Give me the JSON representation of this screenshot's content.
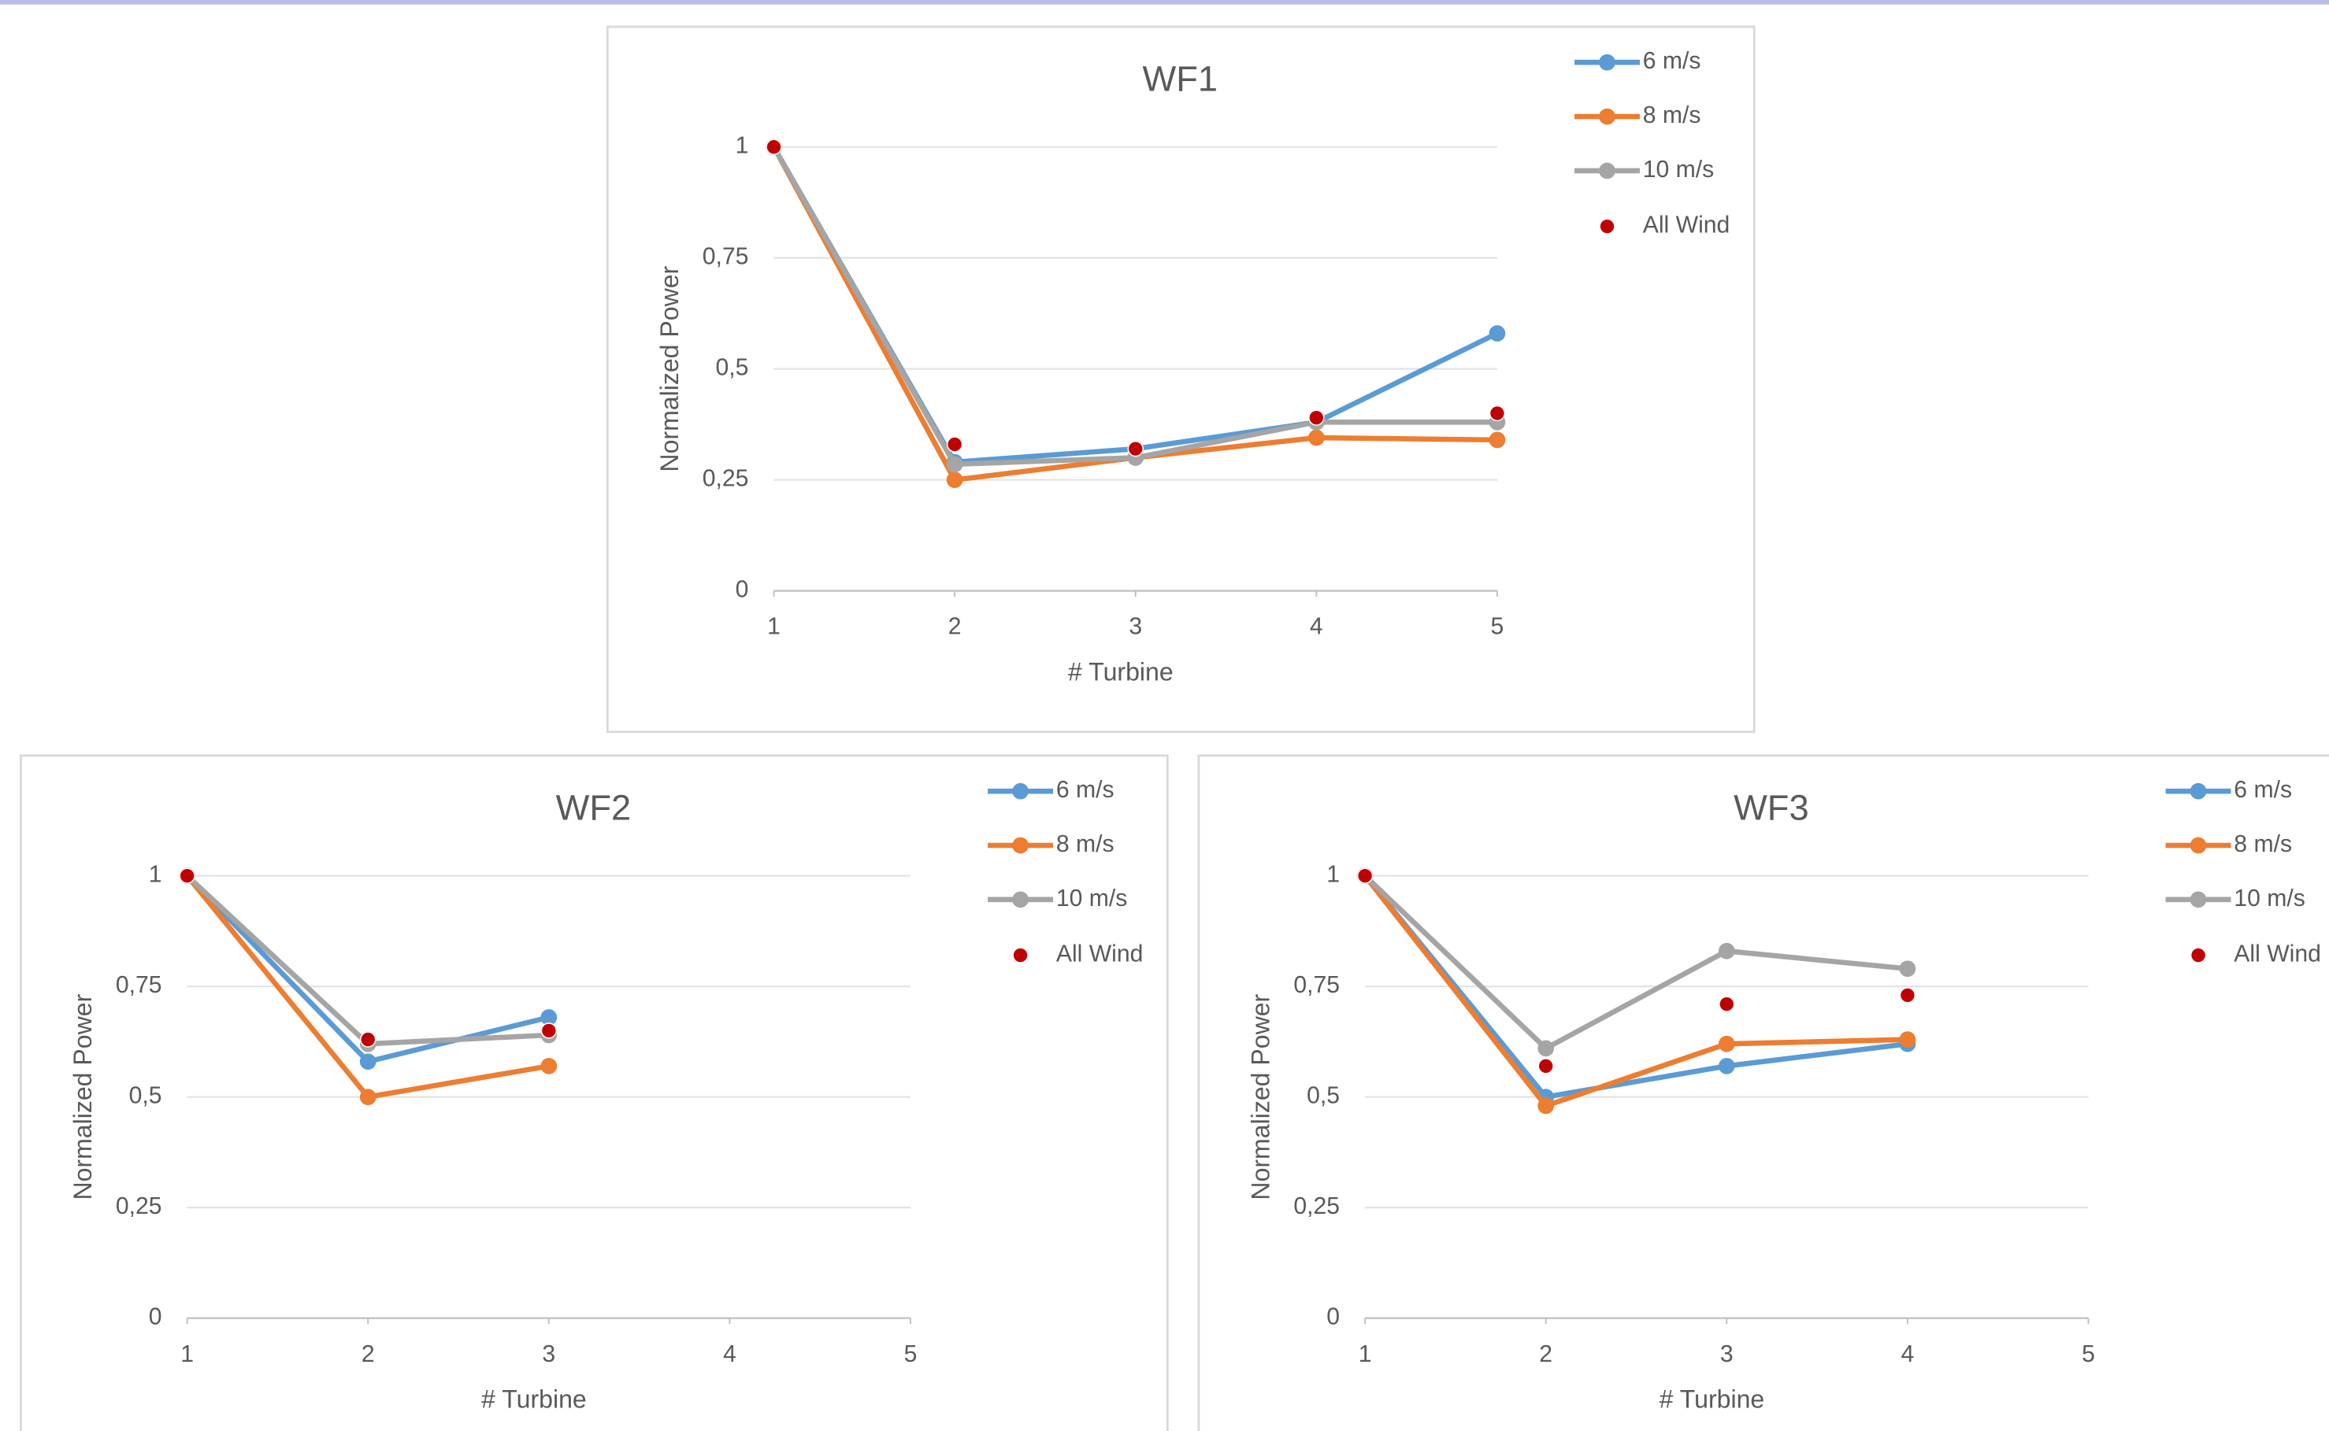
{
  "chart_data": [
    {
      "type": "line",
      "title": "WF1",
      "x_label": "# Turbine",
      "y_label": "Normalized Power",
      "legend": "right",
      "grid": true,
      "x": [
        1,
        2,
        3,
        4,
        5
      ],
      "xlim": [
        1,
        5
      ],
      "xticks": [
        1,
        2,
        3,
        4,
        5
      ],
      "ylim": [
        0,
        1
      ],
      "yticks": [
        0,
        {
          "value": 0.25,
          "label": "0,25"
        },
        {
          "value": 0.5,
          "label": "0,5"
        },
        {
          "value": 0.75,
          "label": "0,75"
        },
        1
      ],
      "series": [
        {
          "name": "6 m/s",
          "color": "#5b9bd5",
          "type": "line",
          "values": [
            1,
            0.29,
            0.32,
            0.38,
            0.58
          ]
        },
        {
          "name": "8 m/s",
          "color": "#ed7d31",
          "type": "line",
          "values": [
            1,
            0.25,
            0.3,
            0.345,
            0.34
          ]
        },
        {
          "name": "10 m/s",
          "color": "#a5a5a5",
          "type": "line",
          "values": [
            1,
            0.285,
            0.3,
            0.38,
            0.38
          ]
        },
        {
          "name": "All Wind",
          "color": "#c00000",
          "type": "scatter",
          "values": [
            1,
            0.33,
            0.32,
            0.39,
            0.4
          ]
        }
      ]
    },
    {
      "type": "line",
      "title": "WF2",
      "x_label": "# Turbine",
      "y_label": "Normalized Power",
      "legend": "right",
      "grid": true,
      "x": [
        1,
        2,
        3
      ],
      "xlim": [
        1,
        5
      ],
      "xticks": [
        1,
        2,
        3,
        4,
        5
      ],
      "ylim": [
        0,
        1
      ],
      "yticks": [
        0,
        {
          "value": 0.25,
          "label": "0,25"
        },
        {
          "value": 0.5,
          "label": "0,5"
        },
        {
          "value": 0.75,
          "label": "0,75"
        },
        1
      ],
      "series": [
        {
          "name": "6 m/s",
          "color": "#5b9bd5",
          "type": "line",
          "values": [
            1,
            0.58,
            0.68
          ]
        },
        {
          "name": "8 m/s",
          "color": "#ed7d31",
          "type": "line",
          "values": [
            1,
            0.5,
            0.57
          ]
        },
        {
          "name": "10 m/s",
          "color": "#a5a5a5",
          "type": "line",
          "values": [
            1,
            0.62,
            0.64
          ]
        },
        {
          "name": "All Wind",
          "color": "#c00000",
          "type": "scatter",
          "values": [
            1,
            0.63,
            0.65
          ]
        }
      ]
    },
    {
      "type": "line",
      "title": "WF3",
      "x_label": "# Turbine",
      "y_label": "Normalized Power",
      "legend": "right",
      "grid": true,
      "x": [
        1,
        2,
        3,
        4
      ],
      "xlim": [
        1,
        5
      ],
      "xticks": [
        1,
        2,
        3,
        4,
        5
      ],
      "ylim": [
        0,
        1
      ],
      "yticks": [
        0,
        {
          "value": 0.25,
          "label": "0,25"
        },
        {
          "value": 0.5,
          "label": "0,5"
        },
        {
          "value": 0.75,
          "label": "0,75"
        },
        1
      ],
      "series": [
        {
          "name": "6 m/s",
          "color": "#5b9bd5",
          "type": "line",
          "values": [
            1,
            0.5,
            0.57,
            0.62
          ]
        },
        {
          "name": "8 m/s",
          "color": "#ed7d31",
          "type": "line",
          "values": [
            1,
            0.48,
            0.62,
            0.63
          ]
        },
        {
          "name": "10 m/s",
          "color": "#a5a5a5",
          "type": "line",
          "values": [
            1,
            0.61,
            0.83,
            0.79
          ]
        },
        {
          "name": "All Wind",
          "color": "#c00000",
          "type": "scatter",
          "values": [
            1,
            0.57,
            0.71,
            0.73
          ]
        }
      ]
    }
  ]
}
